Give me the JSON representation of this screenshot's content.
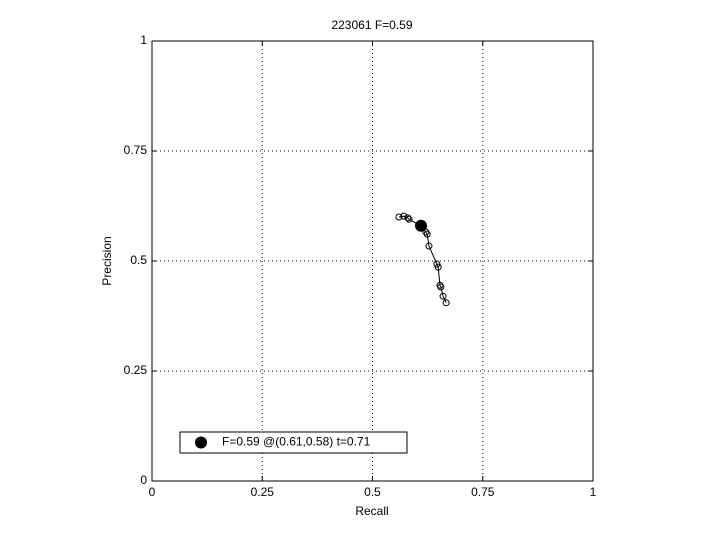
{
  "chart_data": {
    "type": "scatter",
    "title": "223061 F=0.59",
    "xlabel": "Recall",
    "ylabel": "Precision",
    "xlim": [
      0,
      1
    ],
    "ylim": [
      0,
      1
    ],
    "xticks": [
      0,
      0.25,
      0.5,
      0.75,
      1
    ],
    "yticks": [
      0,
      0.25,
      0.5,
      0.75,
      1
    ],
    "grid": true,
    "legend": "lower left",
    "series": [
      {
        "color": "#000000",
        "line": true,
        "x": [
          0.56,
          0.571,
          0.58,
          0.583,
          0.605,
          0.61,
          0.621,
          0.624,
          0.628,
          0.646,
          0.649,
          0.653,
          0.655,
          0.66,
          0.667
        ],
        "values": [
          0.6,
          0.602,
          0.598,
          0.595,
          0.582,
          0.577,
          0.566,
          0.561,
          0.534,
          0.493,
          0.486,
          0.445,
          0.441,
          0.42,
          0.405
        ]
      },
      {
        "name": "F=0.59 @(0.61,0.58) t=0.71",
        "color": "#000000",
        "x": [
          0.61
        ],
        "values": [
          0.58
        ]
      }
    ]
  }
}
